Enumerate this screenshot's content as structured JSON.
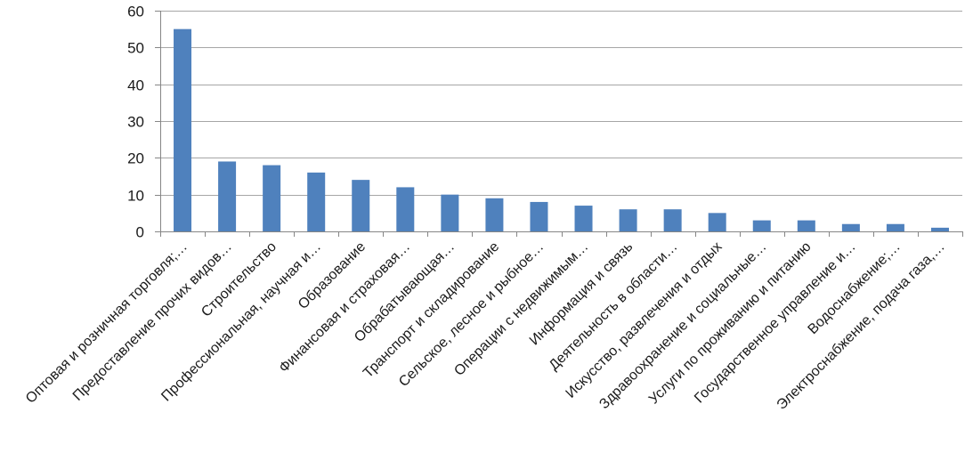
{
  "chart_data": {
    "type": "bar",
    "title": "",
    "xlabel": "",
    "ylabel": "",
    "ylim": [
      0,
      60
    ],
    "yticks": [
      0,
      10,
      20,
      30,
      40,
      50,
      60
    ],
    "grid": true,
    "legend": "none",
    "bar_color": "#4F81BD",
    "grid_color": "#a6a6a6",
    "categories": [
      "Оптовая и розничная торговля;…",
      "Предоставление прочих видов…",
      "Строительство",
      "Профессиональная, научная и…",
      "Образование",
      "Финансовая и страховая…",
      "Обрабатывающая…",
      "Транспорт и складирование",
      "Сельское, лесное и рыбное…",
      "Операции с недвижимым…",
      "Информация  и связь",
      "Деятельность в области…",
      "Искусство, развлечения  и отдых",
      "Здравоохранение  и социальные…",
      "Услуги по проживанию  и питанию",
      "Государственное управление  и…",
      "Водоснабжение;…",
      "Электроснабжение,  подача газа,…"
    ],
    "values": [
      55,
      19,
      18,
      16,
      14,
      12,
      10,
      9,
      8,
      7,
      6,
      6,
      5,
      3,
      3,
      2,
      2,
      1
    ]
  }
}
